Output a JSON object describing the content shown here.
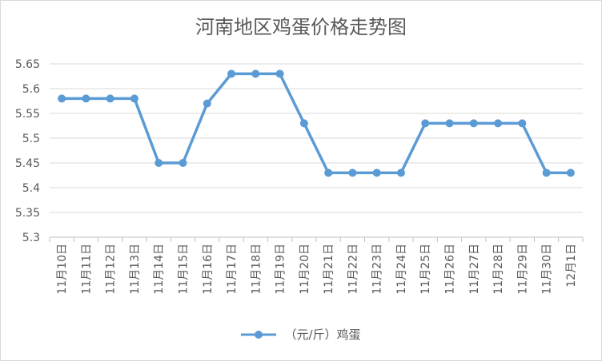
{
  "chart_data": {
    "type": "line",
    "title": "河南地区鸡蛋价格走势图",
    "categories": [
      "11月10日",
      "11月11日",
      "11月12日",
      "11月13日",
      "11月14日",
      "11月15日",
      "11月16日",
      "11月17日",
      "11月18日",
      "11月19日",
      "11月20日",
      "11月21日",
      "11月22日",
      "11月23日",
      "11月24日",
      "11月25日",
      "11月26日",
      "11月27日",
      "11月28日",
      "11月29日",
      "11月30日",
      "12月1日"
    ],
    "series": [
      {
        "name": "（元/斤）鸡蛋",
        "values": [
          5.58,
          5.58,
          5.58,
          5.58,
          5.45,
          5.45,
          5.57,
          5.63,
          5.63,
          5.63,
          5.53,
          5.43,
          5.43,
          5.43,
          5.43,
          5.53,
          5.53,
          5.53,
          5.53,
          5.53,
          5.43,
          5.43
        ]
      }
    ],
    "ylim": [
      5.3,
      5.65
    ],
    "yticks": [
      "5.3",
      "5.35",
      "5.4",
      "5.45",
      "5.5",
      "5.55",
      "5.6",
      "5.65"
    ],
    "grid": true,
    "legend_position": "bottom",
    "line_color": "#5b9bd5"
  }
}
